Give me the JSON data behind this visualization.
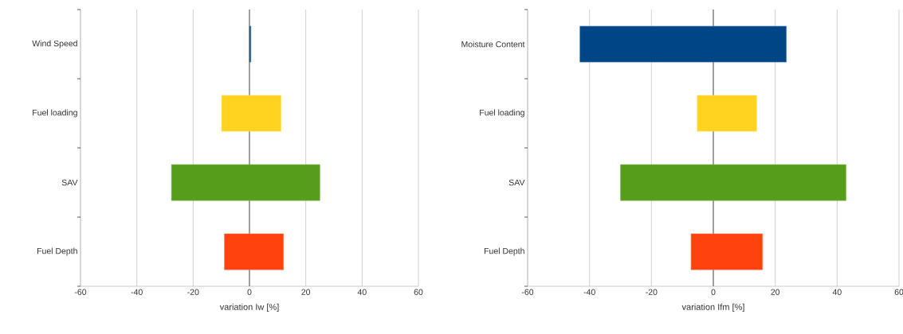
{
  "chart_data": [
    {
      "type": "bar",
      "orientation": "horizontal",
      "categories": [
        "Wind Speed",
        "Fuel loading",
        "SAV",
        "Fuel Depth"
      ],
      "base": [
        0,
        -9.9,
        -27.7,
        -8.9
      ],
      "values": [
        0.5,
        21.1,
        52.7,
        21.0
      ],
      "colors": [
        "#004586",
        "#ffd320",
        "#579d1c",
        "#ff420e"
      ],
      "xlabel": "variation Iw [%]",
      "xlim": [
        -60,
        60
      ],
      "xticks": [
        -60,
        -40,
        -20,
        0,
        20,
        40,
        60
      ],
      "grid": "x"
    },
    {
      "type": "bar",
      "orientation": "horizontal",
      "categories": [
        "Moisture Content",
        "Fuel loading",
        "SAV",
        "Fuel Depth"
      ],
      "base": [
        -43.1,
        -5.2,
        -30.0,
        -7.2
      ],
      "values": [
        66.7,
        19.2,
        72.9,
        23.1
      ],
      "colors": [
        "#004586",
        "#ffd320",
        "#579d1c",
        "#ff420e"
      ],
      "xlabel": "variation Ifm [%]",
      "xlim": [
        -60,
        60
      ],
      "xticks": [
        -60,
        -40,
        -20,
        0,
        20,
        40,
        60
      ],
      "grid": "x"
    }
  ]
}
